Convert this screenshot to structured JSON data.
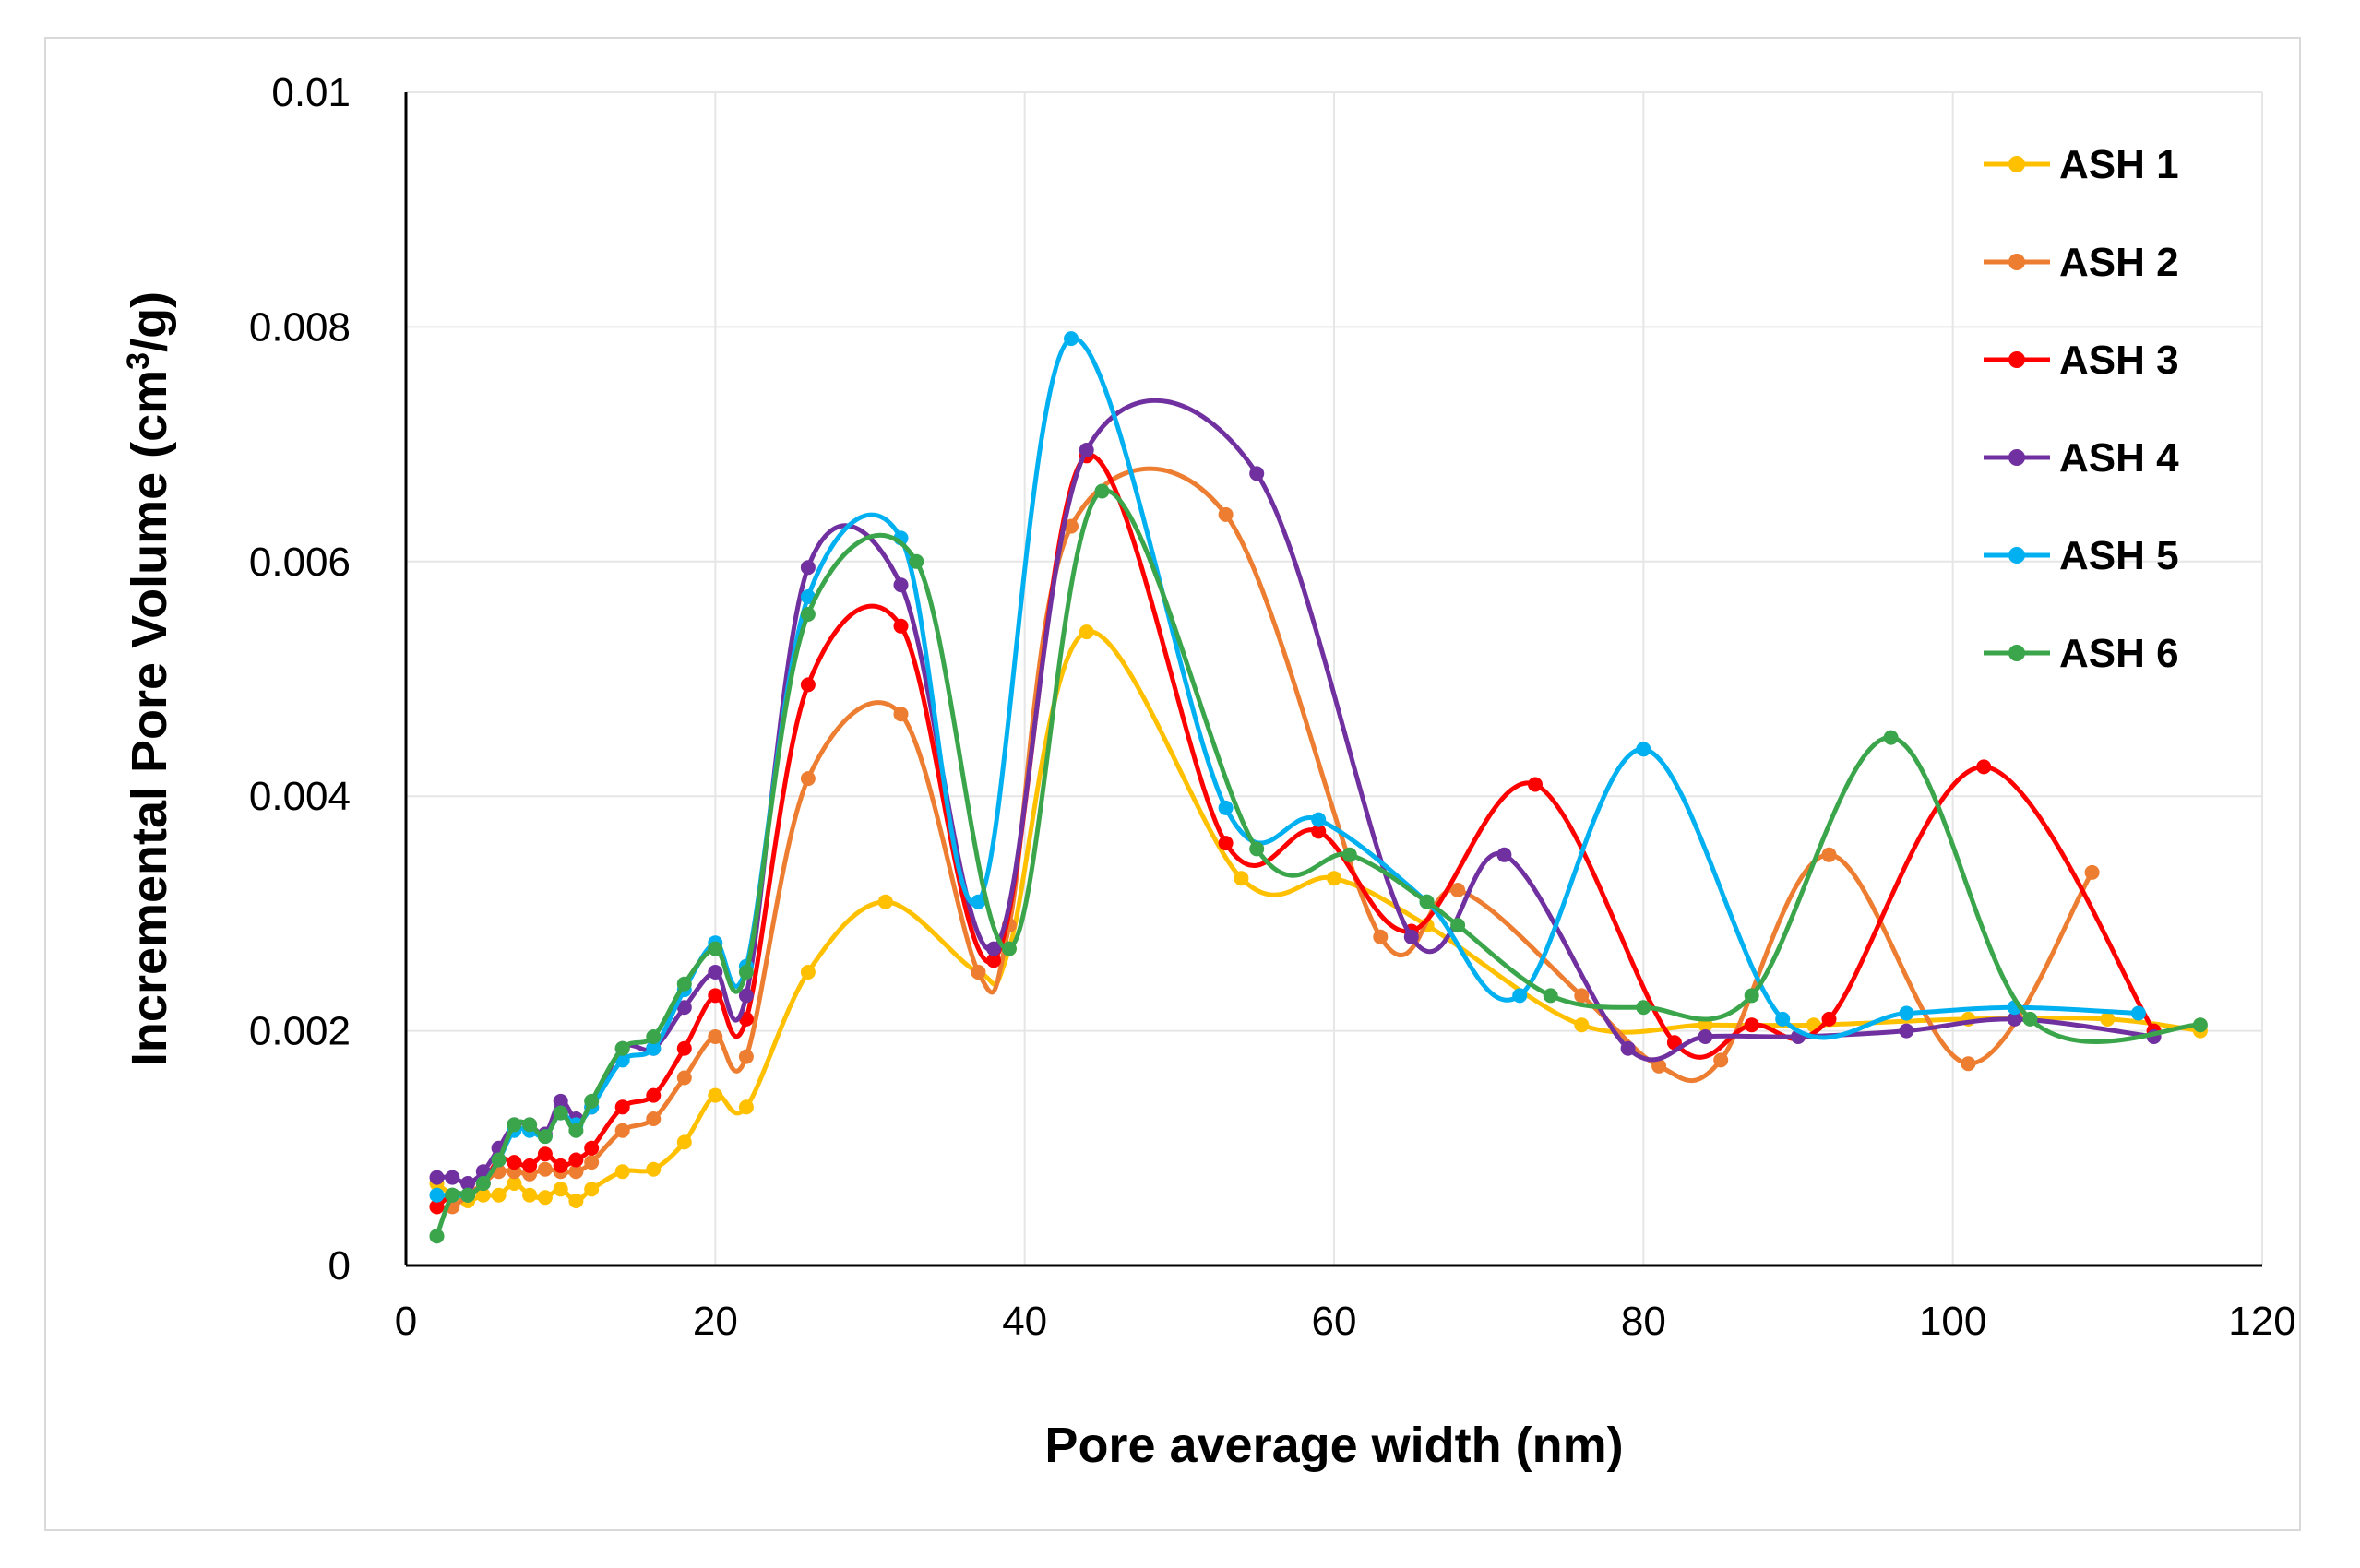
{
  "chart_data": {
    "type": "line",
    "title": "",
    "xlabel": "Pore average width (nm)",
    "ylabel_main": "Incremental Pore Volume (cm",
    "ylabel_sup": "3",
    "ylabel_end": "/g)",
    "xlim": [
      0,
      120
    ],
    "ylim": [
      0,
      0.01
    ],
    "xticks": [
      0,
      20,
      40,
      60,
      80,
      100,
      120
    ],
    "xtick_labels": [
      "0",
      "20",
      "40",
      "60",
      "80",
      "100",
      "120"
    ],
    "yticks": [
      0,
      0.002,
      0.004,
      0.006,
      0.008,
      0.01
    ],
    "ytick_labels": [
      "0",
      "0.002",
      "0.004",
      "0.006",
      "0.008",
      "0.01"
    ],
    "grid": true,
    "legend_position": "right",
    "series": [
      {
        "name": "ASH 1",
        "color": "#ffc000",
        "x": [
          2,
          3,
          4,
          5,
          6,
          7,
          8,
          9,
          10,
          11,
          12,
          14,
          16,
          18,
          20,
          22,
          26,
          31,
          37,
          39,
          44,
          54,
          60,
          66,
          76,
          84,
          91,
          101,
          110,
          116
        ],
        "y": [
          0.0007,
          0.0006,
          0.00055,
          0.0006,
          0.0006,
          0.0007,
          0.0006,
          0.00058,
          0.00065,
          0.00055,
          0.00065,
          0.0008,
          0.00082,
          0.00105,
          0.00145,
          0.00135,
          0.0025,
          0.0031,
          0.0025,
          0.0027,
          0.0054,
          0.0033,
          0.0033,
          0.0029,
          0.00205,
          0.00205,
          0.00205,
          0.0021,
          0.0021,
          0.002
        ]
      },
      {
        "name": "ASH 2",
        "color": "#ed7d31",
        "x": [
          2,
          3,
          4,
          5,
          6,
          7,
          8,
          9,
          10,
          11,
          12,
          14,
          16,
          18,
          20,
          22,
          26,
          32,
          37,
          39,
          43,
          53,
          63,
          68,
          76,
          81,
          85,
          92,
          101,
          109
        ],
        "y": [
          0.0005,
          0.0005,
          0.0006,
          0.0007,
          0.0008,
          0.0008,
          0.00078,
          0.00082,
          0.0008,
          0.0008,
          0.00088,
          0.00115,
          0.00125,
          0.0016,
          0.00195,
          0.00178,
          0.00415,
          0.0047,
          0.0025,
          0.0029,
          0.0063,
          0.0064,
          0.0028,
          0.0032,
          0.0023,
          0.0017,
          0.00175,
          0.0035,
          0.00172,
          0.00335
        ]
      },
      {
        "name": "ASH 3",
        "color": "#ff0000",
        "x": [
          2,
          3,
          4,
          5,
          6,
          7,
          8,
          9,
          10,
          11,
          12,
          14,
          16,
          18,
          20,
          22,
          26,
          32,
          38,
          44,
          53,
          59,
          65,
          73,
          82,
          87,
          92,
          102,
          113
        ],
        "y": [
          0.0005,
          0.0006,
          0.0006,
          0.0007,
          0.0009,
          0.00088,
          0.00085,
          0.00095,
          0.00085,
          0.0009,
          0.001,
          0.00135,
          0.00145,
          0.00185,
          0.0023,
          0.0021,
          0.00495,
          0.00545,
          0.0026,
          0.0069,
          0.0036,
          0.0037,
          0.00285,
          0.0041,
          0.0019,
          0.00205,
          0.0021,
          0.00425,
          0.002
        ]
      },
      {
        "name": "ASH 4",
        "color": "#7030a0",
        "x": [
          2,
          3,
          4,
          5,
          6,
          7,
          8,
          9,
          10,
          11,
          12,
          14,
          16,
          18,
          20,
          22,
          26,
          32,
          38,
          44,
          55,
          65,
          71,
          79,
          84,
          90,
          97,
          104,
          113
        ],
        "y": [
          0.00075,
          0.00075,
          0.0007,
          0.0008,
          0.001,
          0.0012,
          0.0012,
          0.00112,
          0.0014,
          0.00125,
          0.00135,
          0.00185,
          0.00185,
          0.0022,
          0.0025,
          0.0023,
          0.00595,
          0.0058,
          0.0027,
          0.00695,
          0.00675,
          0.0028,
          0.0035,
          0.00185,
          0.00195,
          0.00195,
          0.002,
          0.0021,
          0.00195
        ]
      },
      {
        "name": "ASH 5",
        "color": "#00b0f0",
        "x": [
          2,
          3,
          4,
          5,
          6,
          7,
          8,
          9,
          10,
          11,
          12,
          14,
          16,
          18,
          20,
          22,
          26,
          32,
          37,
          43,
          53,
          59,
          66,
          72,
          80,
          89,
          97,
          104,
          112
        ],
        "y": [
          0.0006,
          0.0006,
          0.0006,
          0.0007,
          0.0009,
          0.00115,
          0.00115,
          0.0011,
          0.0013,
          0.0012,
          0.00135,
          0.00175,
          0.00185,
          0.00235,
          0.00275,
          0.00255,
          0.0057,
          0.0062,
          0.0031,
          0.0079,
          0.0039,
          0.0038,
          0.0031,
          0.0023,
          0.0044,
          0.0021,
          0.00215,
          0.0022,
          0.00215
        ]
      },
      {
        "name": "ASH 6",
        "color": "#3aa54a",
        "x": [
          2,
          3,
          4,
          5,
          6,
          7,
          8,
          9,
          10,
          11,
          12,
          14,
          16,
          18,
          20,
          22,
          26,
          33,
          39,
          45,
          55,
          61,
          66,
          68,
          74,
          80,
          87,
          96,
          105,
          116
        ],
        "y": [
          0.00025,
          0.0006,
          0.0006,
          0.0007,
          0.0009,
          0.0012,
          0.0012,
          0.0011,
          0.0013,
          0.00115,
          0.0014,
          0.00185,
          0.00195,
          0.0024,
          0.0027,
          0.0025,
          0.00555,
          0.006,
          0.0027,
          0.0066,
          0.00355,
          0.0035,
          0.0031,
          0.0029,
          0.0023,
          0.0022,
          0.0023,
          0.0045,
          0.0021,
          0.00205
        ]
      }
    ]
  }
}
